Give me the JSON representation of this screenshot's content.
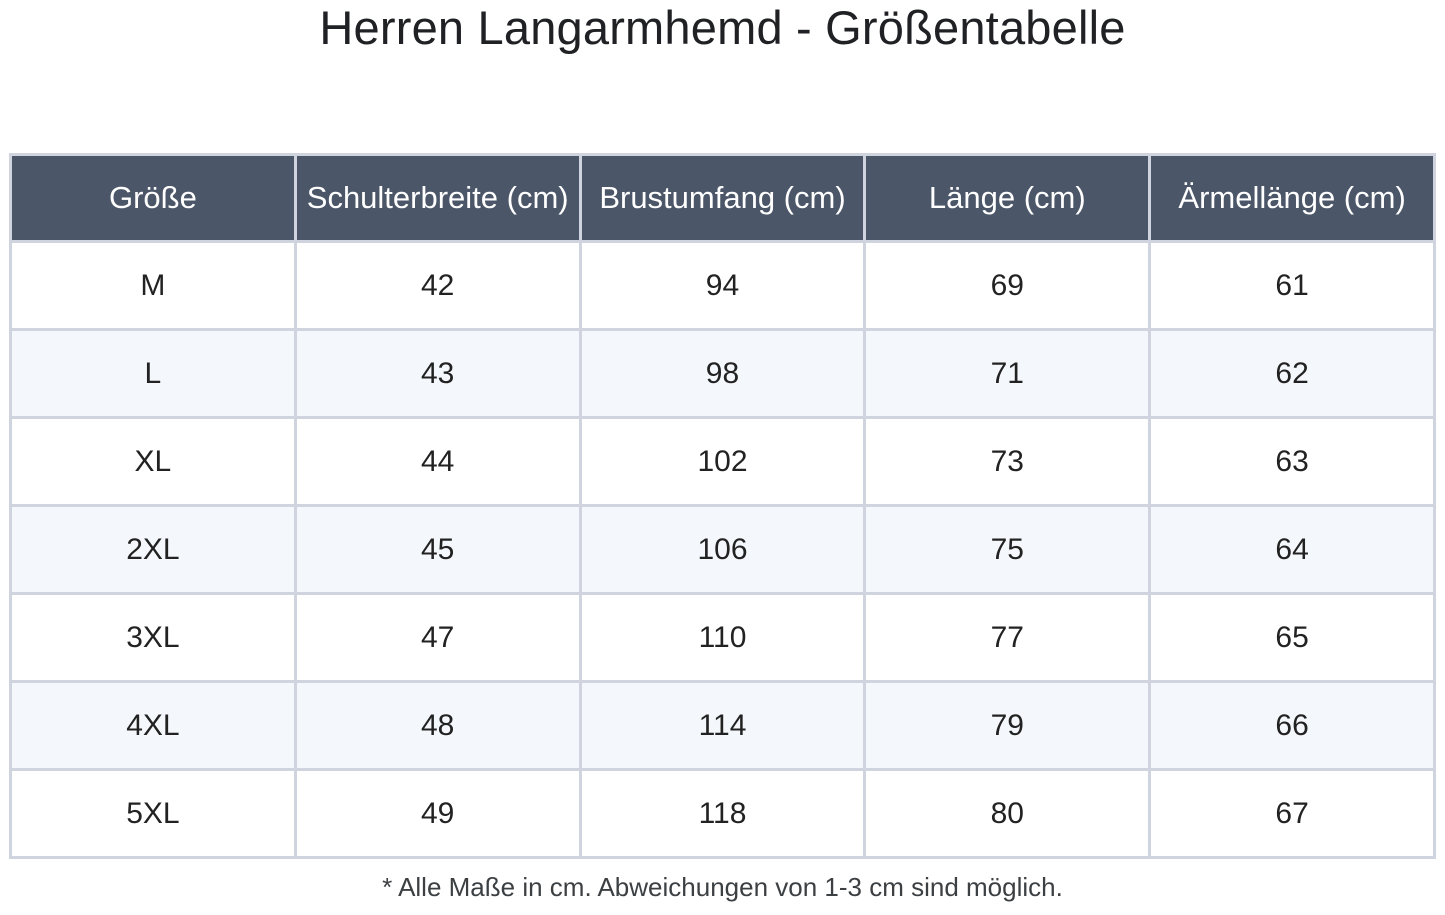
{
  "title": "Herren Langarmhemd - Größentabelle",
  "table": {
    "headers": [
      "Größe",
      "Schulterbreite (cm)",
      "Brustumfang (cm)",
      "Länge (cm)",
      "Ärmellänge (cm)"
    ],
    "rows": [
      [
        "M",
        "42",
        "94",
        "69",
        "61"
      ],
      [
        "L",
        "43",
        "98",
        "71",
        "62"
      ],
      [
        "XL",
        "44",
        "102",
        "73",
        "63"
      ],
      [
        "2XL",
        "45",
        "106",
        "75",
        "64"
      ],
      [
        "3XL",
        "47",
        "110",
        "77",
        "65"
      ],
      [
        "4XL",
        "48",
        "114",
        "79",
        "66"
      ],
      [
        "5XL",
        "49",
        "118",
        "80",
        "67"
      ]
    ]
  },
  "footnote": "* Alle Maße in cm. Abweichungen von 1-3 cm sind möglich.",
  "colors": {
    "header_background": "#4b5668",
    "header_text": "#ffffff",
    "border": "#cfd4de",
    "row_alt_background": "#f4f8fc"
  }
}
